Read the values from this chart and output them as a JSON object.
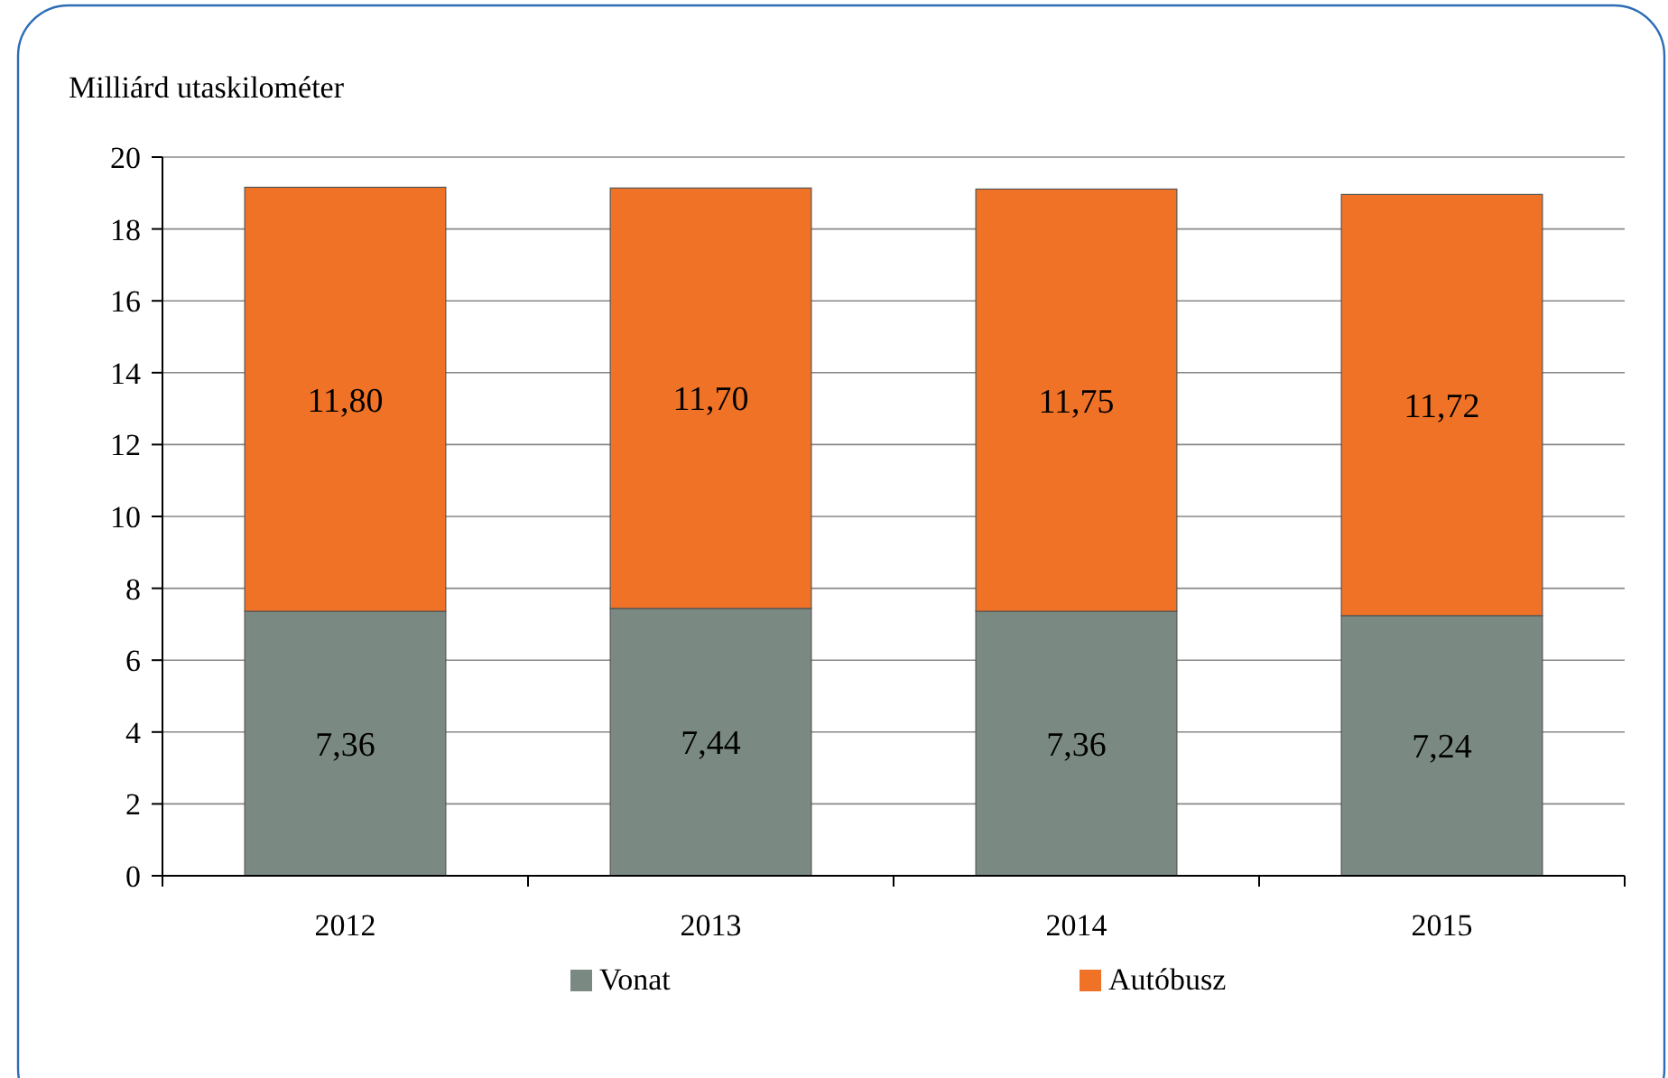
{
  "chart_data": {
    "type": "bar",
    "ylabel": "Milliárd utaskilométer",
    "categories": [
      "2012",
      "2013",
      "2014",
      "2015"
    ],
    "stacked": true,
    "series": [
      {
        "name": "Vonat",
        "color": "#7a8a82",
        "values": [
          7.36,
          7.44,
          7.36,
          7.24
        ],
        "value_labels": [
          "7,36",
          "7,44",
          "7,36",
          "7,24"
        ]
      },
      {
        "name": "Autóbusz",
        "color": "#f07226",
        "values": [
          11.8,
          11.7,
          11.75,
          11.72
        ],
        "value_labels": [
          "11,80",
          "11,70",
          "11,75",
          "11,72"
        ]
      }
    ],
    "ylim": [
      0,
      20
    ],
    "yticks": [
      0,
      2,
      4,
      6,
      8,
      10,
      12,
      14,
      16,
      18,
      20
    ],
    "grid": "y",
    "legend": "bottom"
  }
}
